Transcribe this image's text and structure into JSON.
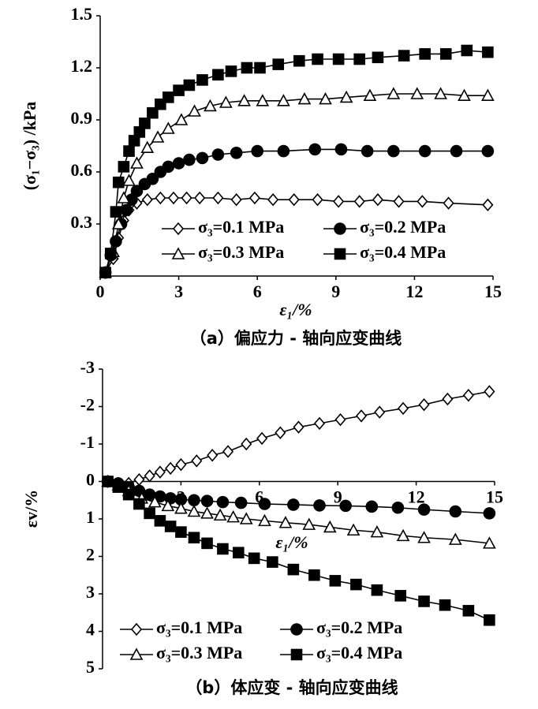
{
  "chart_data": [
    {
      "type": "line",
      "caption": "（a）偏应力 - 轴向应变曲线",
      "x_label": "ε₁/%",
      "y_label": "(σ₁−σ₃) /kPa",
      "xlim": [
        0,
        15
      ],
      "xticks": [
        0,
        3,
        6,
        9,
        12,
        15
      ],
      "ylim": [
        0,
        1.5
      ],
      "yticks": [
        0.3,
        0.6,
        0.9,
        1.2,
        1.5
      ],
      "y_inverted": false,
      "legend_position": "lower right",
      "series": [
        {
          "name": "σ₃=0.1 MPa",
          "color": "#000000",
          "marker": "diamond",
          "filled": false,
          "x": [
            0.2,
            0.5,
            0.7,
            0.9,
            1.1,
            1.4,
            1.8,
            2.3,
            2.8,
            3.3,
            3.8,
            4.5,
            5.2,
            5.9,
            6.6,
            7.4,
            8.3,
            9.1,
            9.9,
            10.6,
            11.4,
            12.3,
            13.3,
            14.8
          ],
          "values": [
            0.02,
            0.1,
            0.22,
            0.32,
            0.38,
            0.42,
            0.44,
            0.45,
            0.45,
            0.45,
            0.45,
            0.45,
            0.44,
            0.45,
            0.44,
            0.44,
            0.44,
            0.43,
            0.43,
            0.44,
            0.43,
            0.43,
            0.42,
            0.41
          ]
        },
        {
          "name": "σ₃=0.2 MPa",
          "color": "#000000",
          "marker": "circle",
          "filled": true,
          "x": [
            0.2,
            0.4,
            0.6,
            0.8,
            1.0,
            1.2,
            1.4,
            1.7,
            2.0,
            2.3,
            2.6,
            3.0,
            3.4,
            3.9,
            4.5,
            5.2,
            6.0,
            7.0,
            8.2,
            9.2,
            10.2,
            11.2,
            12.4,
            13.6,
            14.8
          ],
          "values": [
            0.02,
            0.12,
            0.2,
            0.3,
            0.38,
            0.44,
            0.49,
            0.53,
            0.56,
            0.6,
            0.63,
            0.65,
            0.67,
            0.68,
            0.7,
            0.71,
            0.72,
            0.72,
            0.73,
            0.73,
            0.72,
            0.72,
            0.72,
            0.72,
            0.72
          ]
        },
        {
          "name": "σ₃=0.3 MPa",
          "color": "#000000",
          "marker": "triangle",
          "filled": false,
          "x": [
            0.2,
            0.5,
            0.7,
            0.9,
            1.1,
            1.4,
            1.8,
            2.2,
            2.6,
            3.1,
            3.6,
            4.2,
            4.8,
            5.5,
            6.2,
            7.0,
            7.8,
            8.6,
            9.4,
            10.3,
            11.2,
            12.1,
            13.0,
            13.9,
            14.8
          ],
          "values": [
            0.02,
            0.14,
            0.3,
            0.45,
            0.55,
            0.65,
            0.74,
            0.8,
            0.85,
            0.9,
            0.95,
            0.98,
            1.0,
            1.01,
            1.01,
            1.01,
            1.02,
            1.02,
            1.03,
            1.04,
            1.05,
            1.05,
            1.05,
            1.04,
            1.04
          ]
        },
        {
          "name": "σ₃=0.4 MPa",
          "color": "#000000",
          "marker": "square",
          "filled": true,
          "x": [
            0.2,
            0.4,
            0.6,
            0.7,
            0.9,
            1.1,
            1.3,
            1.5,
            1.7,
            2.0,
            2.3,
            2.6,
            3.0,
            3.4,
            3.9,
            4.5,
            5.0,
            5.6,
            6.1,
            6.8,
            7.6,
            8.3,
            9.1,
            9.9,
            10.6,
            11.6,
            12.4,
            13.2,
            14.0,
            14.8
          ],
          "values": [
            0.02,
            0.13,
            0.37,
            0.54,
            0.63,
            0.72,
            0.78,
            0.83,
            0.88,
            0.94,
            0.99,
            1.03,
            1.07,
            1.1,
            1.13,
            1.16,
            1.18,
            1.2,
            1.2,
            1.22,
            1.24,
            1.25,
            1.25,
            1.25,
            1.26,
            1.27,
            1.28,
            1.28,
            1.3,
            1.29
          ]
        }
      ]
    },
    {
      "type": "line",
      "caption": "（b）体应变 - 轴向应变曲线",
      "x_label": "ε₁/%",
      "y_label": "εv/%",
      "xlim": [
        0,
        15
      ],
      "xticks": [
        3,
        6,
        9,
        12,
        15
      ],
      "ylim": [
        -3,
        5
      ],
      "yticks": [
        -3,
        -2,
        -1,
        0,
        1,
        2,
        3,
        4,
        5
      ],
      "y_inverted": true,
      "legend_position": "bottom",
      "series": [
        {
          "name": "σ₃=0.1 MPa",
          "color": "#000000",
          "marker": "diamond",
          "filled": false,
          "x": [
            0.2,
            0.6,
            1.0,
            1.4,
            1.8,
            2.2,
            2.6,
            3.0,
            3.6,
            4.2,
            4.8,
            5.5,
            6.1,
            6.8,
            7.5,
            8.3,
            9.1,
            9.9,
            10.6,
            11.5,
            12.3,
            13.2,
            14.0,
            14.8
          ],
          "values": [
            0,
            0.05,
            0.05,
            -0.05,
            -0.15,
            -0.25,
            -0.35,
            -0.45,
            -0.55,
            -0.7,
            -0.8,
            -1.0,
            -1.15,
            -1.3,
            -1.45,
            -1.55,
            -1.65,
            -1.75,
            -1.85,
            -1.95,
            -2.05,
            -2.2,
            -2.3,
            -2.4
          ]
        },
        {
          "name": "σ₃=0.2 MPa",
          "color": "#000000",
          "marker": "circle",
          "filled": true,
          "x": [
            0.2,
            0.6,
            1.0,
            1.4,
            1.8,
            2.2,
            2.6,
            3.0,
            3.5,
            4.0,
            4.6,
            5.3,
            6.2,
            7.3,
            8.3,
            9.3,
            10.3,
            11.3,
            12.3,
            13.5,
            14.8
          ],
          "values": [
            0,
            0.05,
            0.15,
            0.25,
            0.35,
            0.4,
            0.45,
            0.48,
            0.5,
            0.52,
            0.55,
            0.57,
            0.6,
            0.62,
            0.64,
            0.65,
            0.67,
            0.7,
            0.75,
            0.8,
            0.85
          ]
        },
        {
          "name": "σ₃=0.3 MPa",
          "color": "#000000",
          "marker": "triangle",
          "filled": false,
          "x": [
            0.2,
            0.6,
            1.0,
            1.5,
            2.0,
            2.5,
            3.0,
            3.5,
            4.0,
            4.5,
            5.0,
            5.5,
            6.2,
            7.0,
            7.9,
            8.7,
            9.6,
            10.5,
            11.5,
            12.3,
            13.5,
            14.8
          ],
          "values": [
            0,
            0.1,
            0.25,
            0.45,
            0.55,
            0.65,
            0.72,
            0.8,
            0.85,
            0.9,
            0.95,
            1.0,
            1.05,
            1.1,
            1.15,
            1.22,
            1.3,
            1.35,
            1.45,
            1.5,
            1.55,
            1.65
          ]
        },
        {
          "name": "σ₃=0.4 MPa",
          "color": "#000000",
          "marker": "square",
          "filled": true,
          "x": [
            0.2,
            0.6,
            1.0,
            1.4,
            1.8,
            2.2,
            2.6,
            3.0,
            3.5,
            4.0,
            4.6,
            5.2,
            5.8,
            6.5,
            7.3,
            8.1,
            8.9,
            9.7,
            10.5,
            11.4,
            12.3,
            13.1,
            14.0,
            14.8
          ],
          "values": [
            0,
            0.15,
            0.35,
            0.6,
            0.85,
            1.05,
            1.2,
            1.35,
            1.5,
            1.65,
            1.8,
            1.9,
            2.05,
            2.15,
            2.35,
            2.5,
            2.65,
            2.75,
            2.9,
            3.05,
            3.2,
            3.3,
            3.45,
            3.7
          ]
        }
      ]
    }
  ]
}
